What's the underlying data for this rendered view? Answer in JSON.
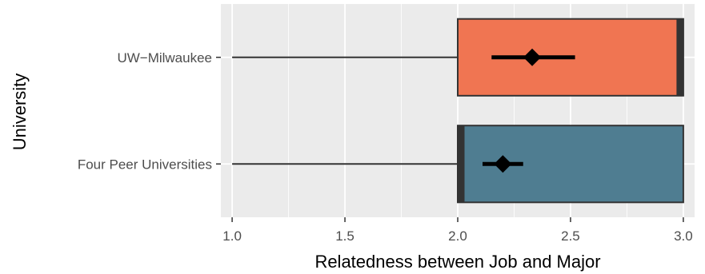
{
  "chart_data": {
    "type": "boxplot",
    "orientation": "horizontal",
    "xlabel": "Relatedness between Job and Major",
    "ylabel": "University",
    "xlim": [
      0.95,
      3.05
    ],
    "x_ticks": [
      1.0,
      1.5,
      2.0,
      2.5,
      3.0
    ],
    "x_tick_labels": [
      "1.0",
      "1.5",
      "2.0",
      "2.5",
      "3.0"
    ],
    "grid": true,
    "legend": "none",
    "background": "#ebebeb",
    "categories": [
      "UW−Milwaukee",
      "Four Peer Universities"
    ],
    "series": [
      {
        "category": "UW−Milwaukee",
        "color": "#f07552",
        "min": 1.0,
        "q1": 2.0,
        "median": 3.0,
        "q3": 3.0,
        "max": 3.0,
        "mean": 2.33,
        "ci": [
          2.15,
          2.52
        ]
      },
      {
        "category": "Four Peer Universities",
        "color": "#4f7d91",
        "min": 1.0,
        "q1": 2.0,
        "median": 2.0,
        "q3": 3.0,
        "max": 3.0,
        "mean": 2.2,
        "ci": [
          2.11,
          2.29
        ]
      }
    ]
  }
}
